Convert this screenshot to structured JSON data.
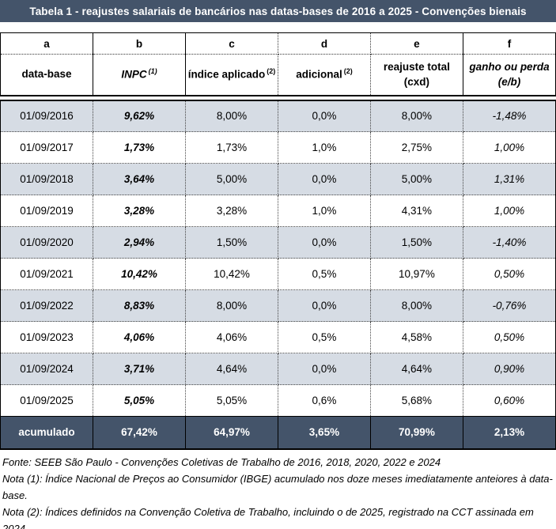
{
  "title": "Tabela 1 - reajustes salariais de bancários nas datas-bases de 2016 a 2025 - Convenções bienais",
  "colors": {
    "header_bg": "#44546A",
    "stripe_bg": "#D6DCE4",
    "total_row_bg": "#44546A",
    "total_row_text": "#FFFFFF"
  },
  "columns": {
    "letters": [
      "a",
      "b",
      "c",
      "d",
      "e",
      "f"
    ],
    "names": [
      {
        "label": "data-base",
        "sup": ""
      },
      {
        "label": "INPC",
        "sup": "(1)"
      },
      {
        "label": "índice aplicado",
        "sup": "(2)"
      },
      {
        "label": "adicional",
        "sup": "(2)"
      },
      {
        "label": "reajuste total",
        "sub": "(cxd)"
      },
      {
        "label": "ganho ou perda",
        "sub": "(e/b)"
      }
    ]
  },
  "rows": [
    {
      "data_base": "01/09/2016",
      "inpc": "9,62%",
      "indice_aplicado": "8,00%",
      "adicional": "0,0%",
      "reajuste_total": "8,00%",
      "ganho_perda": "-1,48%"
    },
    {
      "data_base": "01/09/2017",
      "inpc": "1,73%",
      "indice_aplicado": "1,73%",
      "adicional": "1,0%",
      "reajuste_total": "2,75%",
      "ganho_perda": "1,00%"
    },
    {
      "data_base": "01/09/2018",
      "inpc": "3,64%",
      "indice_aplicado": "5,00%",
      "adicional": "0,0%",
      "reajuste_total": "5,00%",
      "ganho_perda": "1,31%"
    },
    {
      "data_base": "01/09/2019",
      "inpc": "3,28%",
      "indice_aplicado": "3,28%",
      "adicional": "1,0%",
      "reajuste_total": "4,31%",
      "ganho_perda": "1,00%"
    },
    {
      "data_base": "01/09/2020",
      "inpc": "2,94%",
      "indice_aplicado": "1,50%",
      "adicional": "0,0%",
      "reajuste_total": "1,50%",
      "ganho_perda": "-1,40%"
    },
    {
      "data_base": "01/09/2021",
      "inpc": "10,42%",
      "indice_aplicado": "10,42%",
      "adicional": "0,5%",
      "reajuste_total": "10,97%",
      "ganho_perda": "0,50%"
    },
    {
      "data_base": "01/09/2022",
      "inpc": "8,83%",
      "indice_aplicado": "8,00%",
      "adicional": "0,0%",
      "reajuste_total": "8,00%",
      "ganho_perda": "-0,76%"
    },
    {
      "data_base": "01/09/2023",
      "inpc": "4,06%",
      "indice_aplicado": "4,06%",
      "adicional": "0,5%",
      "reajuste_total": "4,58%",
      "ganho_perda": "0,50%"
    },
    {
      "data_base": "01/09/2024",
      "inpc": "3,71%",
      "indice_aplicado": "4,64%",
      "adicional": "0,0%",
      "reajuste_total": "4,64%",
      "ganho_perda": "0,90%"
    },
    {
      "data_base": "01/09/2025",
      "inpc": "5,05%",
      "indice_aplicado": "5,05%",
      "adicional": "0,6%",
      "reajuste_total": "5,68%",
      "ganho_perda": "0,60%"
    }
  ],
  "total": {
    "label": "acumulado",
    "inpc": "67,42%",
    "indice_aplicado": "64,97%",
    "adicional": "3,65%",
    "reajuste_total": "70,99%",
    "ganho_perda": "2,13%"
  },
  "footer": {
    "fonte": "Fonte: SEEB São Paulo - Convenções Coletivas de Trabalho de 2016, 2018, 2020, 2022 e 2024",
    "nota1": "Nota (1): Índice Nacional de Preços ao Consumidor (IBGE) acumulado nos doze meses imediatamente anteiores à data-base.",
    "nota2": "Nota (2): Índices definidos na Convenção Coletiva de Trabalho, incluindo o de 2025, registrado na CCT assinada em 2024"
  }
}
